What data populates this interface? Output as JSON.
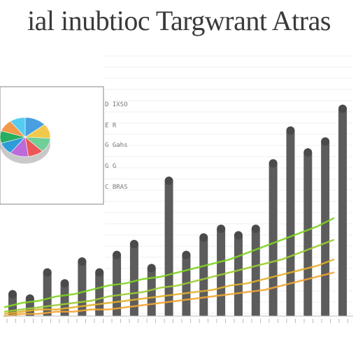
{
  "title": "ial inubtioc Targwrant Atras",
  "chart_data": [
    {
      "type": "pie",
      "legend_text": "",
      "slices": [
        {
          "value": 14,
          "color": "#4a9fe0"
        },
        {
          "value": 12,
          "color": "#f2c94c"
        },
        {
          "value": 12,
          "color": "#6fcf97"
        },
        {
          "value": 10,
          "color": "#eb5757"
        },
        {
          "value": 12,
          "color": "#bb6bd9"
        },
        {
          "value": 10,
          "color": "#2d9cdb"
        },
        {
          "value": 10,
          "color": "#27ae60"
        },
        {
          "value": 10,
          "color": "#f2994a"
        },
        {
          "value": 10,
          "color": "#56ccf2"
        }
      ]
    },
    {
      "type": "bar",
      "legend_labels": [
        "D IXSO",
        "E R",
        "G Gahs",
        "G G",
        "C BRAS"
      ],
      "categories": [
        "1",
        "2",
        "3",
        "4",
        "5",
        "6",
        "7",
        "8",
        "9",
        "10",
        "11",
        "12",
        "13",
        "14",
        "15",
        "16",
        "17",
        "18",
        "19",
        "20"
      ],
      "values": [
        10,
        8,
        20,
        15,
        25,
        20,
        28,
        33,
        22,
        62,
        28,
        36,
        40,
        37,
        40,
        70,
        85,
        75,
        80,
        95
      ],
      "ylim": [
        0,
        100
      ],
      "bar_color": "#5c5c5c",
      "series": [
        {
          "color": "#7ed321",
          "values": [
            4,
            6,
            7,
            9,
            10,
            12,
            14,
            15,
            17,
            18,
            20,
            22,
            24,
            26,
            29,
            32,
            35,
            38,
            41,
            45
          ]
        },
        {
          "color": "#9acd32",
          "values": [
            2,
            3,
            4,
            5,
            6,
            7,
            9,
            10,
            11,
            13,
            14,
            16,
            18,
            20,
            22,
            24,
            26,
            29,
            32,
            35
          ]
        },
        {
          "color": "#e3b02a",
          "values": [
            1,
            2,
            3,
            3,
            4,
            5,
            6,
            7,
            8,
            9,
            10,
            11,
            12,
            14,
            15,
            17,
            19,
            21,
            23,
            26
          ]
        },
        {
          "color": "#f2a533",
          "values": [
            0,
            1,
            1,
            2,
            2,
            3,
            3,
            4,
            5,
            6,
            7,
            8,
            9,
            10,
            11,
            12,
            14,
            16,
            18,
            20
          ]
        }
      ]
    }
  ]
}
